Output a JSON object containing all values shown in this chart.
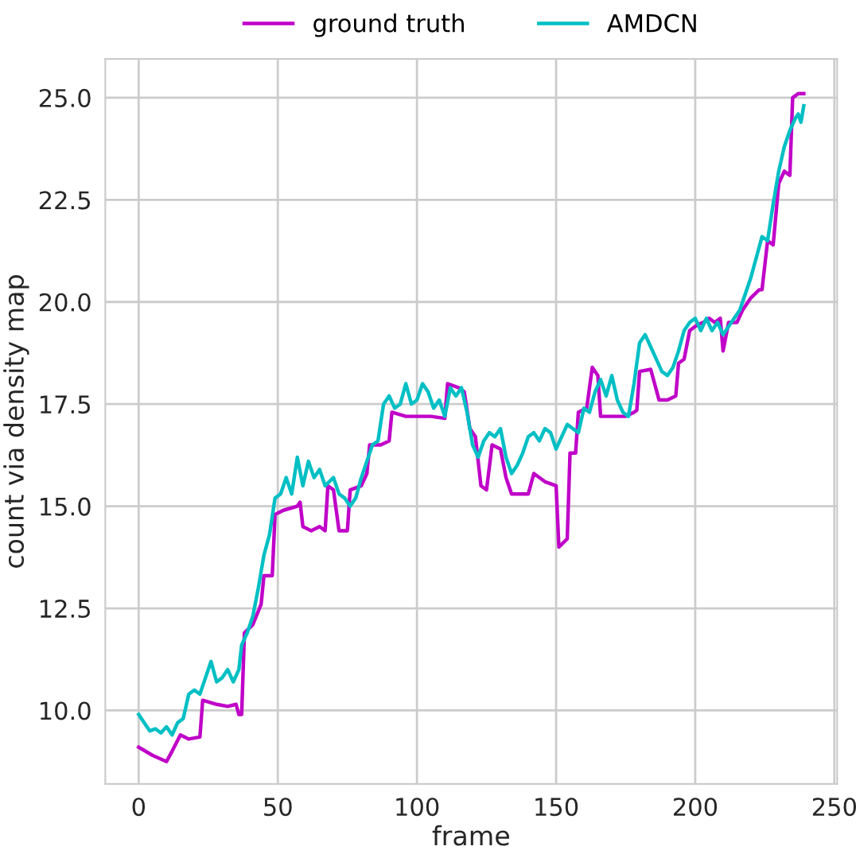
{
  "chart_data": {
    "type": "line",
    "xlabel": "frame",
    "ylabel": "count via density map",
    "xlim": [
      -12,
      251
    ],
    "ylim": [
      8.2,
      25.95
    ],
    "xticks": [
      0,
      50,
      100,
      150,
      200,
      250
    ],
    "yticks": [
      {
        "value": 10,
        "label": "10.0"
      },
      {
        "value": 12.5,
        "label": "12.5"
      },
      {
        "value": 15,
        "label": "15.0"
      },
      {
        "value": 17.5,
        "label": "17.5"
      },
      {
        "value": 20,
        "label": "20.0"
      },
      {
        "value": 22.5,
        "label": "22.5"
      },
      {
        "value": 25,
        "label": "25.0"
      }
    ],
    "grid": true,
    "legend": "top",
    "marker": "none",
    "line_style": "solid",
    "series": [
      {
        "name": "ground truth",
        "color": "#c000c8",
        "x": [
          0,
          5,
          10,
          12,
          15,
          18,
          22,
          23,
          28,
          32,
          35,
          36,
          37,
          38,
          41,
          44,
          45,
          48,
          49,
          52,
          57,
          58,
          59,
          62,
          65,
          67,
          68,
          70,
          72,
          75,
          76,
          80,
          82,
          83,
          87,
          90,
          91,
          96,
          100,
          105,
          110,
          111,
          115,
          117,
          119,
          121,
          123,
          125,
          127,
          130,
          132,
          134,
          140,
          142,
          146,
          150,
          151,
          154,
          155,
          157,
          158,
          161,
          163,
          165,
          166,
          170,
          175,
          178,
          179,
          180,
          184,
          187,
          190,
          193,
          194,
          196,
          198,
          201,
          203,
          205,
          207,
          209,
          210,
          212,
          215,
          217,
          220,
          223,
          224,
          226,
          228,
          230,
          232,
          234,
          235,
          237,
          239
        ],
        "values": [
          9.1,
          8.9,
          8.75,
          9.0,
          9.4,
          9.3,
          9.35,
          10.25,
          10.15,
          10.1,
          10.15,
          9.9,
          9.9,
          11.9,
          12.1,
          12.6,
          13.3,
          13.3,
          14.8,
          14.9,
          15.0,
          15.1,
          14.5,
          14.4,
          14.5,
          14.4,
          15.5,
          15.4,
          14.4,
          14.4,
          15.4,
          15.5,
          15.8,
          16.5,
          16.5,
          16.6,
          17.3,
          17.2,
          17.2,
          17.2,
          17.15,
          18.0,
          17.9,
          17.8,
          16.9,
          16.7,
          15.5,
          15.4,
          16.5,
          16.4,
          15.7,
          15.3,
          15.3,
          15.8,
          15.6,
          15.5,
          14.0,
          14.2,
          16.3,
          16.3,
          17.3,
          17.4,
          18.4,
          18.2,
          17.2,
          17.2,
          17.2,
          17.3,
          17.35,
          18.3,
          18.35,
          17.6,
          17.6,
          17.7,
          18.5,
          18.6,
          19.3,
          19.45,
          19.5,
          19.6,
          19.5,
          19.6,
          18.8,
          19.5,
          19.5,
          19.8,
          20.1,
          20.3,
          20.3,
          21.5,
          21.4,
          22.9,
          23.2,
          23.1,
          25.0,
          25.1,
          25.1
        ]
      },
      {
        "name": "AMDCN",
        "color": "#00bfc4",
        "x": [
          0,
          2,
          4,
          6,
          8,
          10,
          12,
          14,
          16,
          18,
          20,
          22,
          24,
          26,
          28,
          30,
          32,
          34,
          36,
          37,
          39,
          41,
          43,
          45,
          47,
          49,
          51,
          53,
          55,
          57,
          59,
          61,
          63,
          65,
          67,
          70,
          72,
          74,
          76,
          78,
          80,
          82,
          84,
          86,
          88,
          90,
          92,
          94,
          96,
          98,
          100,
          102,
          104,
          106,
          108,
          110,
          112,
          114,
          116,
          118,
          120,
          122,
          124,
          126,
          128,
          130,
          132,
          134,
          136,
          138,
          140,
          142,
          144,
          146,
          148,
          150,
          152,
          154,
          156,
          158,
          160,
          162,
          164,
          166,
          168,
          170,
          172,
          174,
          176,
          178,
          180,
          182,
          184,
          186,
          188,
          190,
          192,
          194,
          196,
          198,
          200,
          202,
          204,
          206,
          208,
          210,
          212,
          214,
          216,
          218,
          220,
          222,
          224,
          226,
          228,
          230,
          232,
          234,
          236,
          237,
          238,
          239
        ],
        "values": [
          9.9,
          9.7,
          9.5,
          9.55,
          9.45,
          9.6,
          9.4,
          9.7,
          9.8,
          10.4,
          10.5,
          10.4,
          10.8,
          11.2,
          10.7,
          10.8,
          11.0,
          10.7,
          11.0,
          11.6,
          11.9,
          12.3,
          13.0,
          13.8,
          14.3,
          15.2,
          15.3,
          15.7,
          15.3,
          16.2,
          15.5,
          16.1,
          15.7,
          15.9,
          15.5,
          15.7,
          15.3,
          15.2,
          15.0,
          15.2,
          15.7,
          16.1,
          16.5,
          16.6,
          17.5,
          17.7,
          17.4,
          17.5,
          18.0,
          17.5,
          17.6,
          18.0,
          17.8,
          17.4,
          17.6,
          17.2,
          17.9,
          17.7,
          17.9,
          17.3,
          16.5,
          16.2,
          16.6,
          16.8,
          16.7,
          16.9,
          16.2,
          15.8,
          16.0,
          16.3,
          16.7,
          16.8,
          16.6,
          16.9,
          16.8,
          16.4,
          16.7,
          17.0,
          16.9,
          16.8,
          17.4,
          17.3,
          17.8,
          18.1,
          17.7,
          18.2,
          17.6,
          17.3,
          17.2,
          18.0,
          19.0,
          19.2,
          18.9,
          18.6,
          18.3,
          18.2,
          18.4,
          18.8,
          19.3,
          19.5,
          19.6,
          19.3,
          19.6,
          19.3,
          19.5,
          19.2,
          19.4,
          19.6,
          19.8,
          20.2,
          20.6,
          21.1,
          21.6,
          21.5,
          22.4,
          23.2,
          23.8,
          24.2,
          24.5,
          24.6,
          24.4,
          24.8
        ]
      }
    ]
  }
}
